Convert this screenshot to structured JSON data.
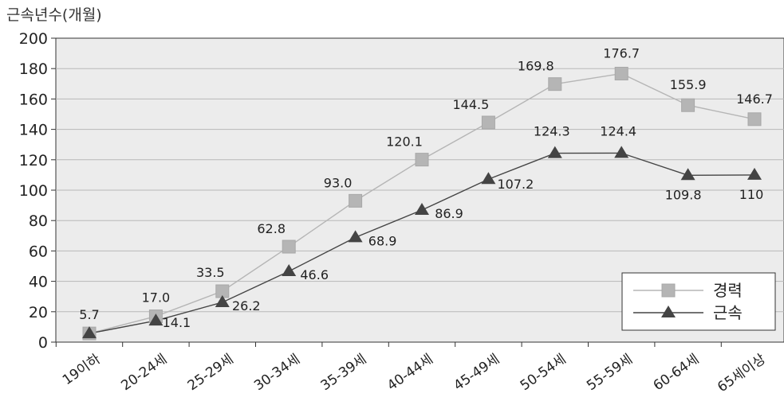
{
  "chart_data": {
    "type": "line",
    "ylabel": "근속년수(개월)",
    "categories": [
      "19이하",
      "20-24세",
      "25-29세",
      "30-34세",
      "35-39세",
      "40-44세",
      "45-49세",
      "50-54세",
      "55-59세",
      "60-64세",
      "65세이상"
    ],
    "ylim": [
      0,
      200
    ],
    "yticks": [
      "0",
      "20",
      "40",
      "60",
      "80",
      "100",
      "120",
      "140",
      "160",
      "180",
      "200"
    ],
    "grid": true,
    "legend_position": "bottom-right",
    "series": [
      {
        "name": "경력",
        "marker": "square",
        "color": "#b5b5b5",
        "values": [
          5.7,
          17.0,
          33.5,
          62.8,
          93.0,
          120.1,
          144.5,
          169.8,
          176.7,
          155.9,
          146.7
        ],
        "labels": [
          "5.7",
          "17.0",
          "33.5",
          "62.8",
          "93.0",
          "120.1",
          "144.5",
          "169.8",
          "176.7",
          "155.9",
          "146.7"
        ]
      },
      {
        "name": "근속",
        "marker": "triangle",
        "color": "#444444",
        "values": [
          5.7,
          14.1,
          26.2,
          46.6,
          68.9,
          86.9,
          107.2,
          124.3,
          124.4,
          109.8,
          110
        ],
        "labels": [
          "",
          "14.1",
          "26.2",
          "46.6",
          "68.9",
          "86.9",
          "107.2",
          "124.3",
          "124.4",
          "109.8",
          "110"
        ]
      }
    ]
  }
}
